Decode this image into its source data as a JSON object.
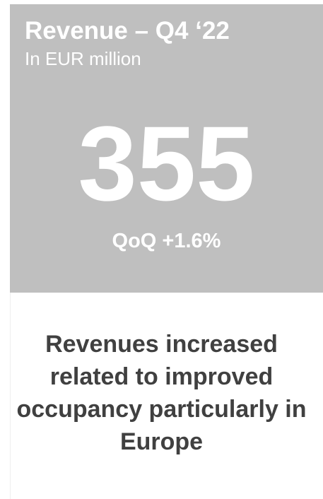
{
  "card": {
    "title": "Revenue – Q4 ‘22",
    "subtitle": "In EUR million",
    "value": "355",
    "change": "QoQ +1.6%"
  },
  "description": {
    "lines": [
      "Revenues increased",
      "related to improved",
      "occupancy particularly in",
      "Europe"
    ]
  }
}
